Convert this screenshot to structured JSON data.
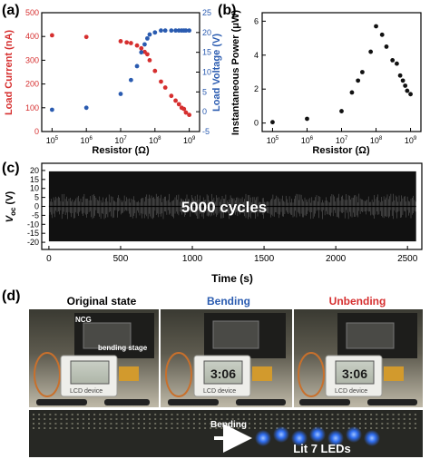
{
  "panels": {
    "a": "(a)",
    "b": "(b)",
    "c": "(c)",
    "d": "(d)"
  },
  "chart_data": [
    {
      "id": "a",
      "type": "scatter",
      "xlabel": "Resistor (Ω)",
      "x_scale": "log",
      "xlim": [
        50000,
        2000000000
      ],
      "x_ticks": [
        "10^5",
        "10^6",
        "10^7",
        "10^8",
        "10^9"
      ],
      "ylabel": "Load Current (nA)",
      "ylim": [
        0,
        500
      ],
      "y_ticks": [
        "0",
        "100",
        "200",
        "300",
        "400",
        "500"
      ],
      "y2label": "Load Voltage (V)",
      "y2lim": [
        -5,
        25
      ],
      "y2_ticks": [
        "-5",
        "0",
        "5",
        "10",
        "15",
        "20",
        "25"
      ],
      "colors": {
        "current": "#d62f2f",
        "voltage": "#2a5bb0",
        "ylabel": "#d62f2f",
        "y2label": "#2a5bb0"
      },
      "series": [
        {
          "axis": "left",
          "x": [
            100000,
            1000000,
            10000000,
            15000000,
            20000000,
            30000000,
            40000000,
            50000000,
            60000000,
            70000000,
            100000000,
            150000000,
            200000000,
            300000000,
            400000000,
            500000000,
            600000000,
            700000000,
            800000000,
            1000000000
          ],
          "values": [
            405,
            398,
            380,
            375,
            372,
            362,
            350,
            335,
            325,
            300,
            255,
            210,
            185,
            150,
            130,
            115,
            100,
            95,
            80,
            70
          ]
        },
        {
          "axis": "right",
          "x": [
            100000,
            1000000,
            10000000,
            20000000,
            30000000,
            40000000,
            50000000,
            60000000,
            70000000,
            100000000,
            150000000,
            200000000,
            300000000,
            400000000,
            500000000,
            600000000,
            700000000,
            800000000,
            1000000000
          ],
          "values": [
            0.5,
            1,
            4.5,
            8,
            11.5,
            15,
            17,
            18.5,
            19.5,
            20,
            20.5,
            20.5,
            20.5,
            20.5,
            20.5,
            20.5,
            20.5,
            20.5,
            20.5
          ]
        }
      ]
    },
    {
      "id": "b",
      "type": "scatter",
      "xlabel": "Resistor (Ω)",
      "x_scale": "log",
      "xlim": [
        50000,
        2000000000
      ],
      "x_ticks": [
        "10^5",
        "10^6",
        "10^7",
        "10^8",
        "10^9"
      ],
      "ylabel": "Instantaneous Power (μW)",
      "ylim": [
        -0.5,
        6.5
      ],
      "y_ticks": [
        "0",
        "2",
        "4",
        "6"
      ],
      "colors": {
        "points": "#111111"
      },
      "series": [
        {
          "x": [
            100000,
            1000000,
            10000000,
            20000000,
            30000000,
            40000000,
            70000000,
            100000000,
            150000000,
            200000000,
            300000000,
            400000000,
            500000000,
            600000000,
            700000000,
            800000000,
            1000000000
          ],
          "values": [
            0.05,
            0.25,
            0.7,
            1.8,
            2.5,
            3.0,
            4.2,
            5.7,
            5.2,
            4.5,
            3.7,
            3.5,
            2.8,
            2.5,
            2.2,
            1.9,
            1.7
          ]
        }
      ]
    },
    {
      "id": "c",
      "type": "line",
      "xlabel": "Time (s)",
      "xlim": [
        -50,
        2600
      ],
      "x_ticks": [
        "0",
        "500",
        "1000",
        "1500",
        "2000",
        "2500"
      ],
      "ylabel_main": "V",
      "ylabel_sub": "oc",
      "ylabel_unit": " (V)",
      "ylim": [
        -24,
        24
      ],
      "y_ticks": [
        "-20",
        "-15",
        "-10",
        "-5",
        "0",
        "5",
        "10",
        "15",
        "20"
      ],
      "annotation": "5000 cycles",
      "signal": {
        "t_start": 0,
        "t_end": 2560,
        "amplitude_pos": 19.5,
        "amplitude_neg": -19.5,
        "cycles": 5000
      },
      "colors": {
        "signal": "#111111"
      }
    }
  ],
  "photos": {
    "labels": {
      "original": "Original state",
      "bending": "Bending",
      "unbending": "Unbending"
    },
    "label_colors": {
      "original": "#111111",
      "bending": "#2a5bb0",
      "unbending": "#d62f2f"
    },
    "annotations": {
      "ncg": "NCG",
      "bending_stage": "bending stage",
      "lcd_device": "LCD device",
      "lcd_display": "3:06",
      "arrow_label": "Bending",
      "lit": "Lit 7 LEDs"
    }
  }
}
